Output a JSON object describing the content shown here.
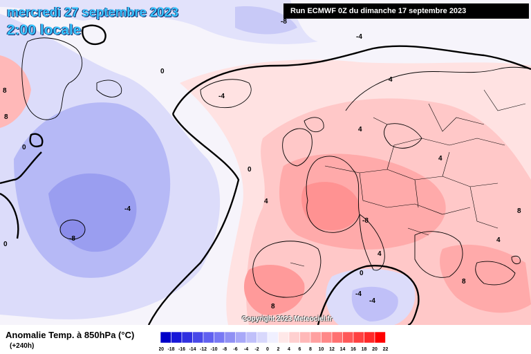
{
  "header": {
    "date": "mercredi 27 septembre 2023",
    "time": "2:00 locale",
    "run": "Run ECMWF 0Z du dimanche 17 septembre 2023"
  },
  "legend": {
    "title": "Anomalie Temp. à 850hPa (°C)",
    "lead": "(+240h)",
    "scale_ticks": [
      "-20",
      "-18",
      "-16",
      "-14",
      "-12",
      "-10",
      "-8",
      "-6",
      "-4",
      "-2",
      "0",
      "2",
      "4",
      "6",
      "8",
      "10",
      "12",
      "14",
      "16",
      "18",
      "20",
      "22"
    ],
    "scale_colors": [
      "#0000c8",
      "#1818d8",
      "#3030e0",
      "#4848e8",
      "#6060f0",
      "#7878f4",
      "#9090f4",
      "#a8a8f8",
      "#c0c0fa",
      "#d8d8fc",
      "#f0f0ff",
      "#ffe8e8",
      "#ffd0d0",
      "#ffb8b8",
      "#ffa0a0",
      "#ff8888",
      "#ff7070",
      "#ff5858",
      "#ff4040",
      "#ff2828",
      "#ff0000"
    ]
  },
  "copyright": "Copyright 2023 Meteociel.fr",
  "contour_labels": [
    "-8",
    "-4",
    "-4",
    "-8",
    "-4",
    "0",
    "0",
    "0",
    "0",
    "4",
    "4",
    "4",
    "4",
    "4",
    "4",
    "-4",
    "-8",
    "-4",
    "0",
    "8",
    "8",
    "8",
    "8",
    "8"
  ],
  "colors": {
    "cold_strong": "#9a9ef0",
    "cold_mid": "#b6b9f6",
    "cold_light": "#dcdcfa",
    "neutral": "#f5f5ff",
    "warm_light": "#ffe2e2",
    "warm_mid": "#ffc8c8",
    "warm_strong": "#ffa5a5",
    "warm_hot": "#ff8c8c"
  }
}
